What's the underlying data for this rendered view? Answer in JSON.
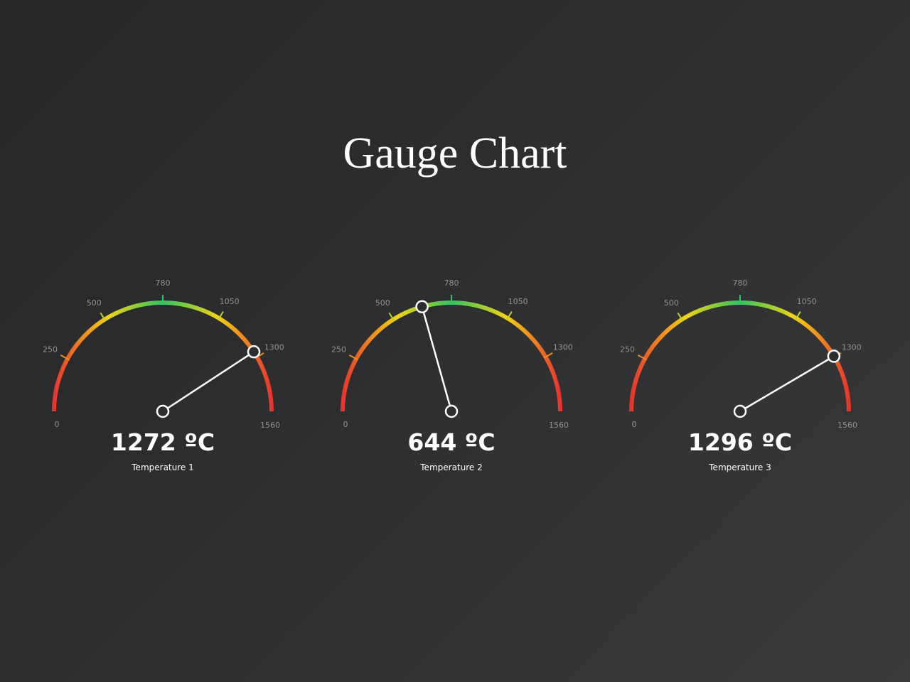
{
  "page": {
    "title": "Gauge Chart"
  },
  "chart_data": [
    {
      "type": "gauge",
      "name": "Temperature 1",
      "value": 1272,
      "value_label": "1272 ºC",
      "unit": "ºC",
      "min": 0,
      "max": 1560,
      "ticks": [
        0,
        250,
        500,
        780,
        1050,
        1300,
        1560
      ],
      "tick_labels": [
        "0",
        "250",
        "500",
        "780",
        "1050",
        "1300",
        "1560"
      ]
    },
    {
      "type": "gauge",
      "name": "Temperature 2",
      "value": 644,
      "value_label": "644 ºC",
      "unit": "ºC",
      "min": 0,
      "max": 1560,
      "ticks": [
        0,
        250,
        500,
        780,
        1050,
        1300,
        1560
      ],
      "tick_labels": [
        "0",
        "250",
        "500",
        "780",
        "1050",
        "1300",
        "1560"
      ]
    },
    {
      "type": "gauge",
      "name": "Temperature 3",
      "value": 1296,
      "value_label": "1296 ºC",
      "unit": "ºC",
      "min": 0,
      "max": 1560,
      "ticks": [
        0,
        250,
        500,
        780,
        1050,
        1300,
        1560
      ],
      "tick_labels": [
        "0",
        "250",
        "500",
        "780",
        "1050",
        "1300",
        "1560"
      ]
    }
  ],
  "colors": {
    "background": "#2b2c2d",
    "arc_low": "#e8352c",
    "arc_mid_low": "#f5d312",
    "arc_mid": "#2bc760",
    "needle": "#ffffff"
  }
}
